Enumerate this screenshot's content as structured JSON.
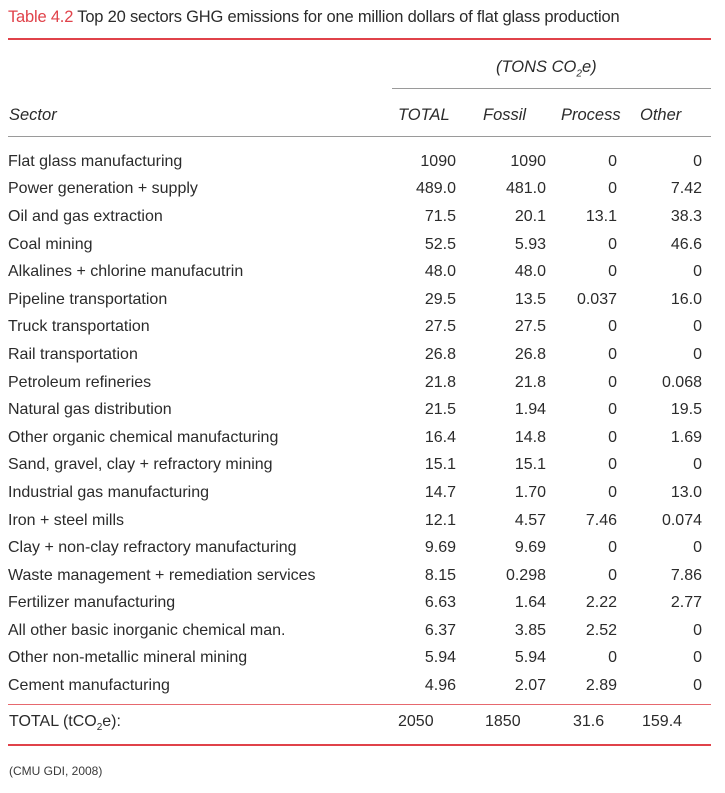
{
  "caption": {
    "tag": "Table 4.2",
    "text": "Top 20 sectors GHG emissions for one million dollars of flat glass production"
  },
  "header": {
    "units_prefix": "(TONS CO",
    "units_sub": "2",
    "units_suffix": "e)",
    "sector": "Sector",
    "total": "TOTAL",
    "fossil": "Fossil",
    "process": "Process",
    "other": "Other"
  },
  "rows": [
    {
      "sector": "Flat glass manufacturing",
      "total": "1090",
      "fossil": "1090",
      "process": "0",
      "other": "0"
    },
    {
      "sector": "Power generation + supply",
      "total": "489.0",
      "fossil": "481.0",
      "process": "0",
      "other": "7.42"
    },
    {
      "sector": "Oil and gas extraction",
      "total": "71.5",
      "fossil": "20.1",
      "process": "13.1",
      "other": "38.3"
    },
    {
      "sector": "Coal mining",
      "total": "52.5",
      "fossil": "5.93",
      "process": "0",
      "other": "46.6"
    },
    {
      "sector": "Alkalines + chlorine manufacutrin",
      "total": "48.0",
      "fossil": "48.0",
      "process": "0",
      "other": "0"
    },
    {
      "sector": "Pipeline transportation",
      "total": "29.5",
      "fossil": "13.5",
      "process": "0.037",
      "other": "16.0"
    },
    {
      "sector": "Truck transportation",
      "total": "27.5",
      "fossil": "27.5",
      "process": "0",
      "other": "0"
    },
    {
      "sector": "Rail transportation",
      "total": "26.8",
      "fossil": "26.8",
      "process": "0",
      "other": "0"
    },
    {
      "sector": "Petroleum refineries",
      "total": "21.8",
      "fossil": "21.8",
      "process": "0",
      "other": "0.068"
    },
    {
      "sector": "Natural gas distribution",
      "total": "21.5",
      "fossil": "1.94",
      "process": "0",
      "other": "19.5"
    },
    {
      "sector": "Other organic chemical manufacturing",
      "total": "16.4",
      "fossil": "14.8",
      "process": "0",
      "other": "1.69"
    },
    {
      "sector": "Sand, gravel, clay + refractory mining",
      "total": "15.1",
      "fossil": "15.1",
      "process": "0",
      "other": "0"
    },
    {
      "sector": "Industrial gas manufacturing",
      "total": "14.7",
      "fossil": "1.70",
      "process": "0",
      "other": "13.0"
    },
    {
      "sector": "Iron + steel mills",
      "total": "12.1",
      "fossil": "4.57",
      "process": "7.46",
      "other": "0.074"
    },
    {
      "sector": "Clay + non-clay refractory manufacturing",
      "total": "9.69",
      "fossil": "9.69",
      "process": "0",
      "other": "0"
    },
    {
      "sector": "Waste management + remediation services",
      "total": "8.15",
      "fossil": "0.298",
      "process": "0",
      "other": "7.86"
    },
    {
      "sector": "Fertilizer manufacturing",
      "total": "6.63",
      "fossil": "1.64",
      "process": "2.22",
      "other": "2.77"
    },
    {
      "sector": "All other basic inorganic chemical man.",
      "total": "6.37",
      "fossil": "3.85",
      "process": "2.52",
      "other": "0"
    },
    {
      "sector": "Other non-metallic mineral mining",
      "total": "5.94",
      "fossil": "5.94",
      "process": "0",
      "other": "0"
    },
    {
      "sector": "Cement manufacturing",
      "total": "4.96",
      "fossil": "2.07",
      "process": "2.89",
      "other": "0"
    }
  ],
  "totals": {
    "label_prefix": "TOTAL (tCO",
    "label_sub": "2",
    "label_suffix": "e):",
    "total": "2050",
    "fossil": "1850",
    "process": "31.6",
    "other": "159.4"
  },
  "source": "(CMU GDI, 2008)",
  "colors": {
    "accent": "#e0424a",
    "rule_grey": "#9a9a9a",
    "text": "#2b2b2b"
  }
}
